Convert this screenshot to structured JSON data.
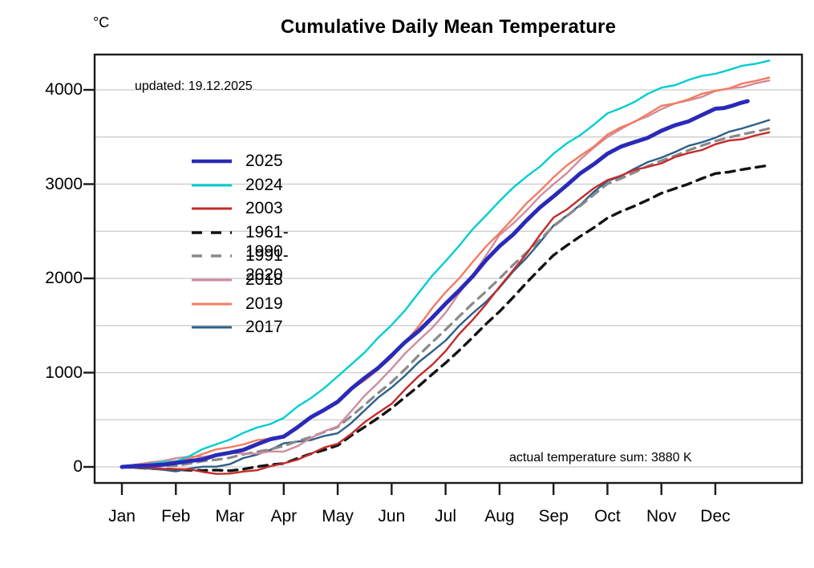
{
  "chart_data": {
    "type": "line",
    "title": "Cumulative Daily Mean Temperature",
    "unit_label": "°C",
    "annotations": {
      "updated": "updated: 19.12.2025",
      "actual_sum": "actual temperature sum: 3880 K"
    },
    "x_tick_labels": [
      "Jan",
      "Feb",
      "Mar",
      "Apr",
      "May",
      "Jun",
      "Jul",
      "Aug",
      "Sep",
      "Oct",
      "Nov",
      "Dec"
    ],
    "yticks": [
      0,
      1000,
      2000,
      3000,
      4000
    ],
    "grid_interval": 500,
    "grid_range": [
      0,
      4000
    ],
    "grid_on": true,
    "legend_position": "upper-left-inside",
    "x_axis_note": "months of one year, cumulative sum sampled at month starts and year end",
    "sample_month_positions": [
      0,
      1,
      2,
      3,
      4,
      5,
      6,
      7,
      8,
      9,
      10,
      11,
      12
    ],
    "series": [
      {
        "name": "2025",
        "color": "#2a2ab8",
        "dashed": false,
        "width": 5,
        "end_month_position": 11.6,
        "values": [
          0,
          35,
          145,
          330,
          700,
          1180,
          1720,
          2340,
          2880,
          3330,
          3560,
          3790,
          3880
        ]
      },
      {
        "name": "2024",
        "color": "#00ced1",
        "dashed": false,
        "width": 2.4,
        "values": [
          0,
          60,
          300,
          520,
          950,
          1500,
          2190,
          2830,
          3320,
          3740,
          4020,
          4180,
          4310
        ]
      },
      {
        "name": "2003",
        "color": "#c42b2b",
        "dashed": false,
        "width": 2.4,
        "values": [
          0,
          -20,
          -80,
          30,
          250,
          680,
          1230,
          1900,
          2640,
          3050,
          3230,
          3420,
          3550
        ]
      },
      {
        "name": "1961-1990",
        "color": "#111111",
        "dashed": true,
        "width": 3.4,
        "values": [
          0,
          -30,
          -40,
          40,
          230,
          620,
          1100,
          1650,
          2250,
          2640,
          2900,
          3110,
          3200
        ]
      },
      {
        "name": "1991-2020",
        "color": "#8a8a8a",
        "dashed": true,
        "width": 3.2,
        "values": [
          0,
          15,
          100,
          220,
          420,
          900,
          1460,
          2000,
          2550,
          3000,
          3250,
          3460,
          3590
        ]
      },
      {
        "name": "2018",
        "color": "#d08c9c",
        "dashed": false,
        "width": 2.4,
        "values": [
          0,
          90,
          140,
          160,
          440,
          1050,
          1630,
          2450,
          3000,
          3510,
          3800,
          3980,
          4100
        ]
      },
      {
        "name": "2019",
        "color": "#f47b5f",
        "dashed": false,
        "width": 2.4,
        "values": [
          0,
          60,
          215,
          330,
          700,
          1150,
          1850,
          2490,
          3080,
          3520,
          3820,
          3990,
          4130
        ]
      },
      {
        "name": "2017",
        "color": "#2d5f87",
        "dashed": false,
        "width": 2.4,
        "values": [
          0,
          -40,
          30,
          240,
          350,
          850,
          1350,
          1900,
          2550,
          3030,
          3290,
          3500,
          3680
        ]
      }
    ],
    "draw_order": [
      3,
      7,
      4,
      2,
      5,
      6,
      1,
      0
    ]
  }
}
